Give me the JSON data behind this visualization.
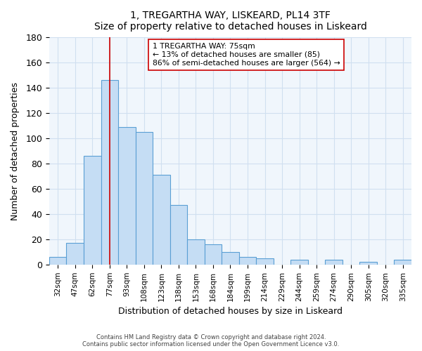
{
  "title": "1, TREGARTHA WAY, LISKEARD, PL14 3TF",
  "subtitle": "Size of property relative to detached houses in Liskeard",
  "xlabel": "Distribution of detached houses by size in Liskeard",
  "ylabel": "Number of detached properties",
  "bar_color": "#c5ddf4",
  "bar_edge_color": "#5a9fd4",
  "bin_labels": [
    "32sqm",
    "47sqm",
    "62sqm",
    "77sqm",
    "93sqm",
    "108sqm",
    "123sqm",
    "138sqm",
    "153sqm",
    "168sqm",
    "184sqm",
    "199sqm",
    "214sqm",
    "229sqm",
    "244sqm",
    "259sqm",
    "274sqm",
    "290sqm",
    "305sqm",
    "320sqm",
    "335sqm"
  ],
  "bar_heights": [
    6,
    17,
    86,
    146,
    109,
    105,
    71,
    47,
    20,
    16,
    10,
    6,
    5,
    0,
    4,
    0,
    4,
    0,
    2,
    0,
    4
  ],
  "vline_x": 3,
  "vline_color": "#cc0000",
  "ylim": [
    0,
    180
  ],
  "yticks": [
    0,
    20,
    40,
    60,
    80,
    100,
    120,
    140,
    160,
    180
  ],
  "annotation_line1": "1 TREGARTHA WAY: 75sqm",
  "annotation_line2": "← 13% of detached houses are smaller (85)",
  "annotation_line3": "86% of semi-detached houses are larger (564) →",
  "footer_line1": "Contains HM Land Registry data © Crown copyright and database right 2024.",
  "footer_line2": "Contains public sector information licensed under the Open Government Licence v3.0.",
  "grid_color": "#d0e0f0",
  "background_color": "#f0f6fc"
}
